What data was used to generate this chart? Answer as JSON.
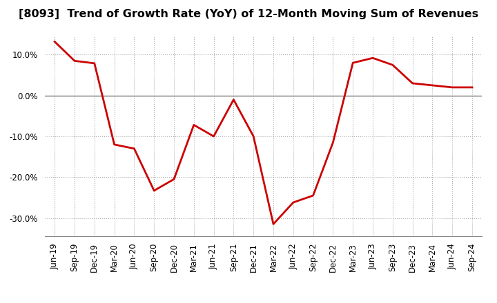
{
  "title": "[8093]  Trend of Growth Rate (YoY) of 12-Month Moving Sum of Revenues",
  "labels": [
    "Jun-19",
    "Sep-19",
    "Dec-19",
    "Mar-20",
    "Jun-20",
    "Sep-20",
    "Dec-20",
    "Mar-21",
    "Jun-21",
    "Sep-21",
    "Dec-21",
    "Mar-22",
    "Jun-22",
    "Sep-22",
    "Dec-22",
    "Mar-23",
    "Jun-23",
    "Sep-23",
    "Dec-23",
    "Mar-24",
    "Jun-24",
    "Sep-24"
  ],
  "values": [
    0.132,
    0.085,
    0.079,
    -0.12,
    -0.13,
    -0.233,
    -0.205,
    -0.072,
    -0.1,
    -0.01,
    -0.1,
    -0.315,
    -0.262,
    -0.245,
    -0.115,
    0.08,
    0.092,
    0.075,
    0.03,
    0.025,
    0.02,
    0.02
  ],
  "line_color": "#cc0000",
  "line_width": 2.0,
  "background_color": "#ffffff",
  "plot_bg_color": "#ffffff",
  "grid_color": "#aaaaaa",
  "zero_line_color": "#666666",
  "title_fontsize": 11.5,
  "tick_fontsize": 8.5,
  "ylim": [
    -0.345,
    0.145
  ],
  "yticks": [
    -0.3,
    -0.2,
    -0.1,
    0.0,
    0.1
  ],
  "ytick_labels": [
    "-30.0%",
    "-20.0%",
    "-10.0%",
    "0.0%",
    "10.0%"
  ]
}
